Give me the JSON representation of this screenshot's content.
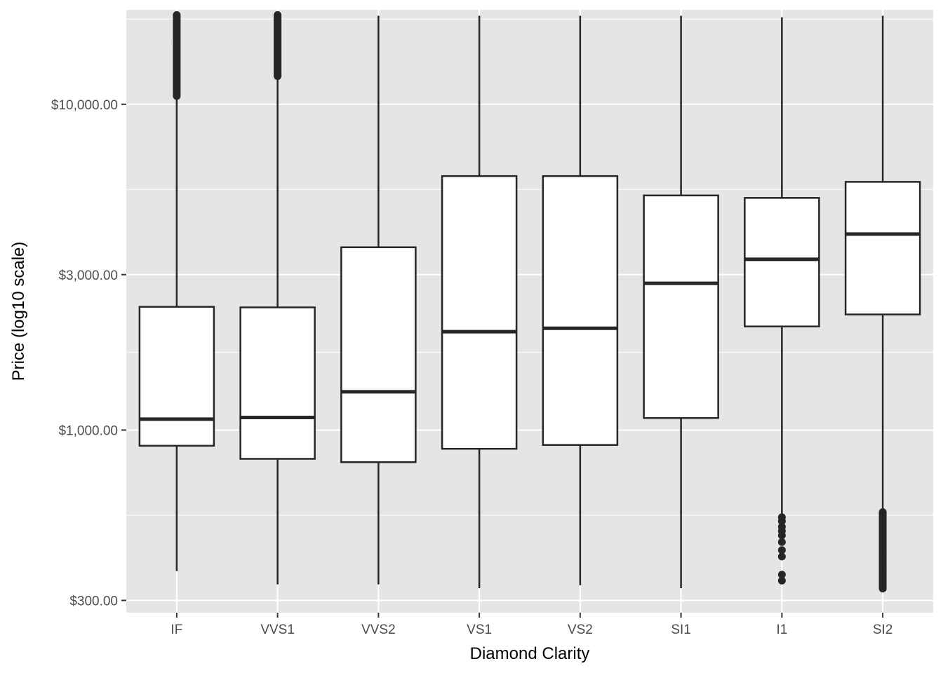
{
  "chart_data": {
    "type": "boxplot",
    "title": "",
    "xlabel": "Diamond Clarity",
    "ylabel": "Price (log10 scale)",
    "y_scale": "log10",
    "ylim": [
      275,
      19500
    ],
    "y_ticks": [
      300,
      1000,
      3000,
      10000
    ],
    "y_tick_labels": [
      "$300.00",
      "$1,000.00",
      "$3,000.00",
      "$10,000.00"
    ],
    "grid": true,
    "legend": "none",
    "colors": {
      "panel": "#e5e5e5",
      "grid": "#ffffff",
      "box_fill": "#ffffff",
      "stroke": "#262626"
    },
    "categories": [
      "IF",
      "VVS1",
      "VVS2",
      "VS1",
      "VS2",
      "SI1",
      "I1",
      "SI2"
    ],
    "series": [
      {
        "category": "IF",
        "min": 369,
        "q1": 895,
        "median": 1080,
        "q3": 2390,
        "max": 10600,
        "outliers": {
          "low": [],
          "high_from": 10600,
          "high_to": 18800
        }
      },
      {
        "category": "VVS1",
        "min": 336,
        "q1": 816,
        "median": 1093,
        "q3": 2380,
        "max": 12200,
        "outliers": {
          "low": [],
          "high_from": 12200,
          "high_to": 18800
        }
      },
      {
        "category": "VVS2",
        "min": 336,
        "q1": 797,
        "median": 1311,
        "q3": 3640,
        "max": 18700,
        "outliers": {
          "low": [],
          "high_from": null,
          "high_to": null
        }
      },
      {
        "category": "VS1",
        "min": 327,
        "q1": 876,
        "median": 2005,
        "q3": 6020,
        "max": 18700,
        "outliers": {
          "low": [],
          "high_from": null,
          "high_to": null
        }
      },
      {
        "category": "VS2",
        "min": 334,
        "q1": 900,
        "median": 2054,
        "q3": 6020,
        "max": 18700,
        "outliers": {
          "low": [],
          "high_from": null,
          "high_to": null
        }
      },
      {
        "category": "SI1",
        "min": 327,
        "q1": 1089,
        "median": 2822,
        "q3": 5250,
        "max": 18700,
        "outliers": {
          "low": [],
          "high_from": null,
          "high_to": null
        }
      },
      {
        "category": "I1",
        "min": 550,
        "q1": 2080,
        "median": 3344,
        "q3": 5160,
        "max": 18500,
        "outliers": {
          "low": [
            345,
            360,
            409,
            428,
            453,
            475,
            490,
            505,
            525,
            540
          ],
          "high_from": null,
          "high_to": null
        }
      },
      {
        "category": "SI2",
        "min": 550,
        "q1": 2264,
        "median": 3996,
        "q3": 5780,
        "max": 18700,
        "outliers": {
          "low": [],
          "low_from": 326,
          "low_to": 560,
          "high_from": null,
          "high_to": null
        }
      }
    ]
  }
}
